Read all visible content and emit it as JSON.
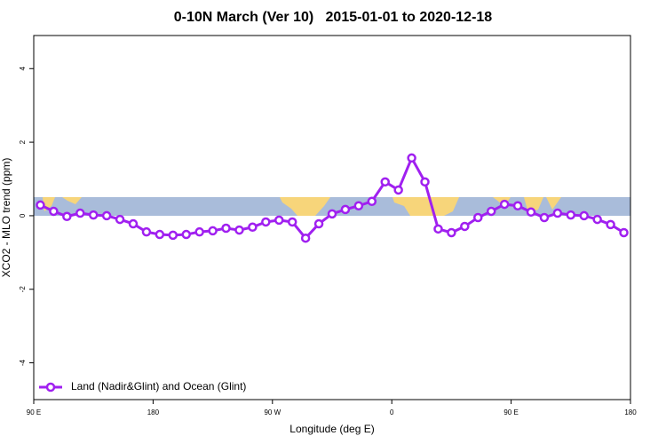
{
  "chart_data": {
    "type": "line",
    "title": "0-10N March (Ver 10)   2015-01-01 to 2020-12-18",
    "x_label": "Longitude (deg E)",
    "y_label": "XCO2 - MLO trend (ppm)",
    "x": [
      95,
      105,
      115,
      125,
      135,
      145,
      155,
      165,
      175,
      185,
      195,
      205,
      215,
      225,
      235,
      245,
      255,
      265,
      275,
      285,
      295,
      305,
      315,
      325,
      335,
      345,
      355,
      365,
      375,
      385,
      395,
      405,
      415,
      425,
      435,
      445,
      455,
      465,
      475,
      485,
      495,
      505,
      515,
      525,
      535
    ],
    "series": [
      {
        "name": "Land (Nadir&Glint) and Ocean (Glint)",
        "color": "#a020f0",
        "values": [
          0.29,
          0.12,
          -0.02,
          0.07,
          0.02,
          0.0,
          -0.1,
          -0.22,
          -0.44,
          -0.51,
          -0.53,
          -0.51,
          -0.44,
          -0.41,
          -0.34,
          -0.39,
          -0.31,
          -0.17,
          -0.12,
          -0.17,
          -0.61,
          -0.22,
          0.05,
          0.17,
          0.27,
          0.39,
          0.92,
          0.7,
          1.57,
          0.92,
          -0.36,
          -0.46,
          -0.29,
          -0.05,
          0.12,
          0.31,
          0.27,
          0.1,
          -0.05,
          0.07,
          0.02,
          0.0,
          -0.1,
          -0.24,
          -0.46
        ]
      }
    ],
    "xlim": [
      90,
      540
    ],
    "ylim": [
      -5,
      4.9
    ],
    "xticks": [
      {
        "value": 90,
        "label": "90 E"
      },
      180,
      {
        "value": 270,
        "label": "90 W"
      },
      {
        "value": 360,
        "label": "0"
      },
      {
        "value": 450,
        "label": "90 E"
      },
      {
        "value": 540,
        "label": "180"
      }
    ],
    "yticks": [
      -4,
      -2,
      0,
      2,
      4
    ],
    "legend": "bottom-left"
  }
}
